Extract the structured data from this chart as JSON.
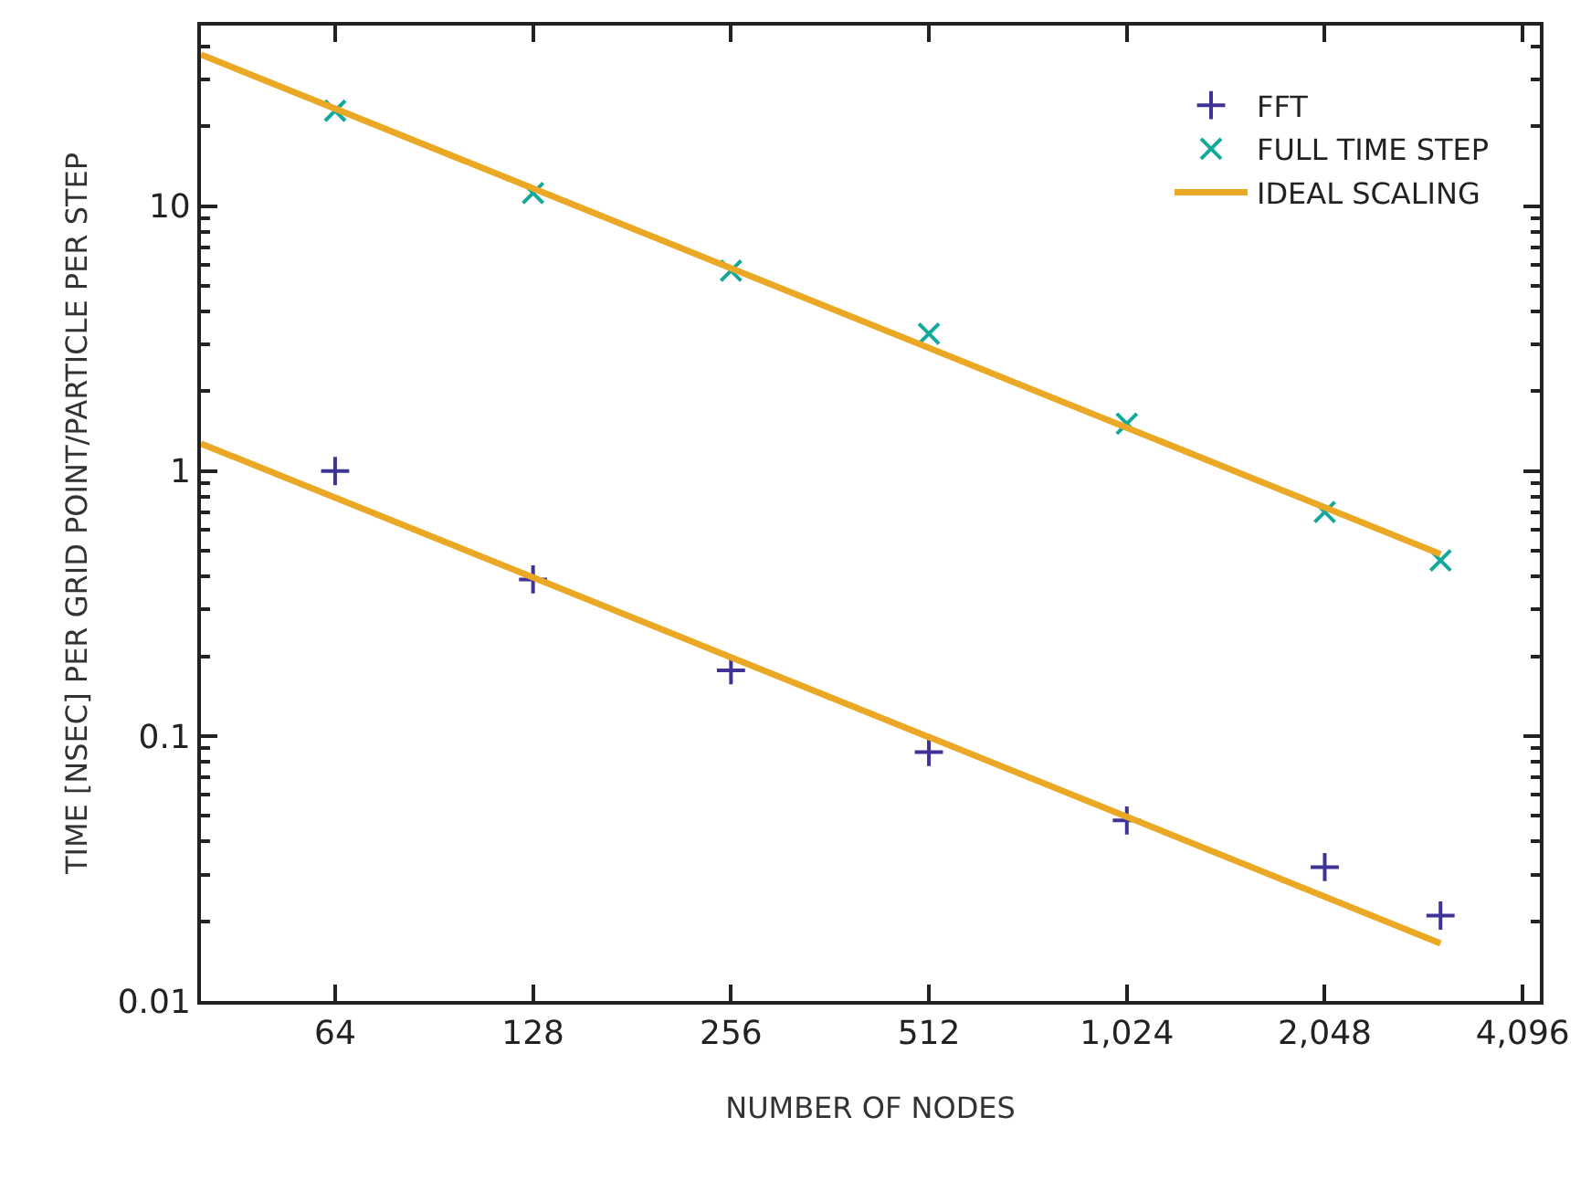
{
  "chart_data": {
    "type": "scatter",
    "xlabel": "NUMBER OF NODES",
    "ylabel": "TIME [NSEC] PER GRID POINT/PARTICLE PER STEP",
    "log": "xy",
    "legend": "top right",
    "xlim": [
      40,
      4350
    ],
    "xticks": [
      64,
      128,
      256,
      512,
      {
        "value": 1024,
        "label": "1,024"
      },
      {
        "value": 2048,
        "label": "2,048"
      },
      {
        "value": 4096,
        "label": "4,096"
      }
    ],
    "ylim": [
      0.01,
      48
    ],
    "yticks": [
      0.01,
      0.1,
      1,
      10
    ],
    "series": [
      {
        "name": "FFT",
        "color": "#3f3495",
        "marker": "cross",
        "x": [
          64,
          128,
          256,
          512,
          1024,
          2048,
          3072
        ],
        "values": [
          1.0,
          0.39,
          0.177,
          0.087,
          0.048,
          0.032,
          0.021
        ]
      },
      {
        "name": "FULL TIME STEP",
        "color": "#13a99a",
        "marker": "x",
        "x": [
          64,
          128,
          256,
          512,
          1024,
          2048,
          3072
        ],
        "values": [
          22.9,
          11.2,
          5.7,
          3.3,
          1.51,
          0.7,
          0.46
        ]
      },
      {
        "name": "IDEAL SCALING",
        "type": "line",
        "color": "#eaa824",
        "line_style": "solid",
        "x": [
          40,
          3072
        ],
        "values": [
          37.3,
          0.486
        ]
      },
      {
        "type": "line",
        "color": "#eaa824",
        "line_style": "solid",
        "x": [
          40,
          3072
        ],
        "values": [
          1.27,
          0.0165
        ]
      }
    ]
  }
}
